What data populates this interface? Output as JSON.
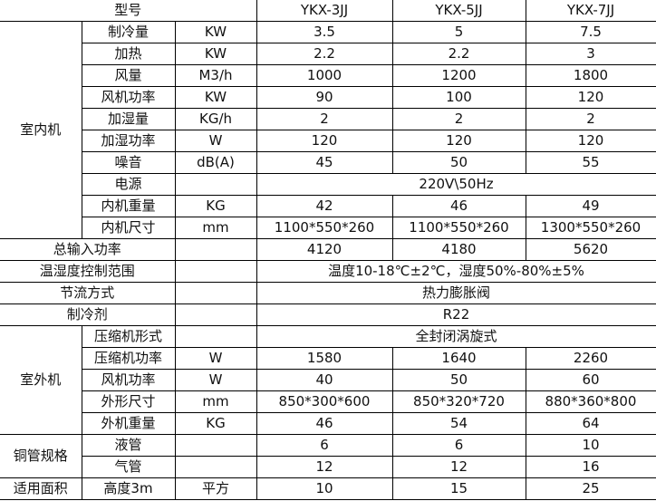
{
  "header": {
    "label": "型号",
    "models": [
      "YKX-3JJ",
      "YKX-5JJ",
      "YKX-7JJ"
    ]
  },
  "indoor": {
    "group": "室内机",
    "rows": [
      {
        "label": "制冷量",
        "unit": "KW",
        "values": [
          "3.5",
          "5",
          "7.5"
        ]
      },
      {
        "label": "加热",
        "unit": "KW",
        "values": [
          "2.2",
          "2.2",
          "3"
        ]
      },
      {
        "label": "风量",
        "unit": "M3/h",
        "values": [
          "1000",
          "1200",
          "1800"
        ]
      },
      {
        "label": "风机功率",
        "unit": "KW",
        "values": [
          "90",
          "100",
          "120"
        ]
      },
      {
        "label": "加湿量",
        "unit": "KG/h",
        "values": [
          "2",
          "2",
          "2"
        ]
      },
      {
        "label": "加湿功率",
        "unit": "W",
        "values": [
          "120",
          "120",
          "120"
        ]
      },
      {
        "label": "噪音",
        "unit": "dB(A)",
        "values": [
          "45",
          "50",
          "55"
        ]
      },
      {
        "label": "电源",
        "value": "220V\\50Hz"
      },
      {
        "label": "内机重量",
        "unit": "KG",
        "values": [
          "42",
          "46",
          "49"
        ]
      },
      {
        "label": "内机尺寸",
        "unit": "mm",
        "values": [
          "1100*550*260",
          "1100*550*260",
          "1300*550*260"
        ]
      }
    ]
  },
  "total_power": {
    "label": "总输入功率",
    "values": [
      "4120",
      "4180",
      "5620"
    ]
  },
  "control_range": {
    "label": "温湿度控制范围",
    "value": "温度10-18℃±2℃，湿度50%-80%±5%"
  },
  "throttle": {
    "label": "节流方式",
    "value": "热力膨胀阀"
  },
  "refrigerant": {
    "label": "制冷剂",
    "value": "R22"
  },
  "outdoor": {
    "group": "室外机",
    "rows": [
      {
        "label": "压缩机形式",
        "value": "全封闭涡旋式"
      },
      {
        "label": "压缩机功率",
        "unit": "W",
        "values": [
          "1580",
          "1640",
          "2260"
        ]
      },
      {
        "label": "风机功率",
        "unit": "W",
        "values": [
          "40",
          "50",
          "60"
        ]
      },
      {
        "label": "外形尺寸",
        "unit": "mm",
        "values": [
          "850*300*600",
          "850*320*720",
          "880*360*800"
        ]
      },
      {
        "label": "外机重量",
        "unit": "KG",
        "values": [
          "46",
          "54",
          "64"
        ]
      }
    ]
  },
  "pipe": {
    "group": "铜管规格",
    "rows": [
      {
        "label": "液管",
        "values": [
          "6",
          "6",
          "10"
        ]
      },
      {
        "label": "气管",
        "values": [
          "12",
          "12",
          "16"
        ]
      }
    ]
  },
  "area": {
    "group": "适用面积",
    "label": "高度3m",
    "unit": "平方",
    "values": [
      "10",
      "15",
      "25"
    ]
  }
}
